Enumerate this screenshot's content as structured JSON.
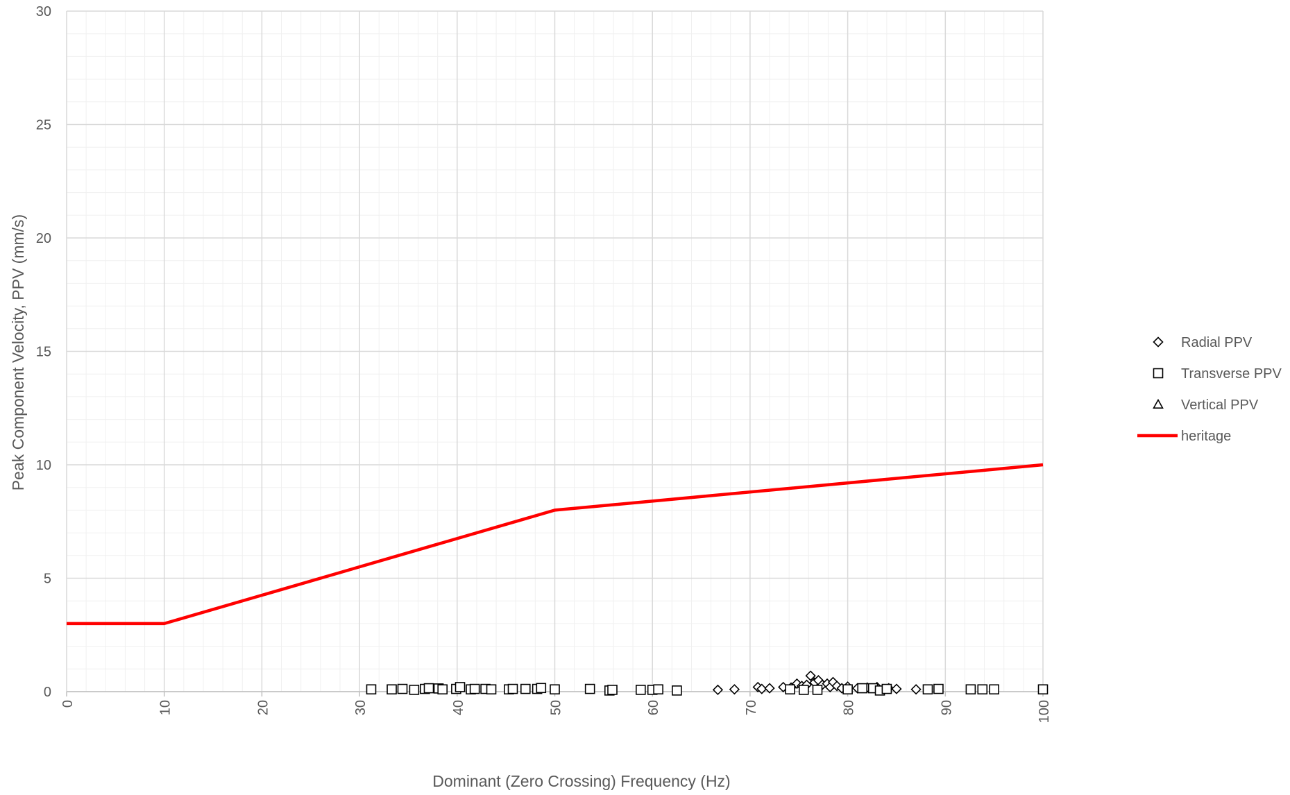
{
  "chart_data": {
    "type": "scatter",
    "title": "",
    "xlabel": "Dominant (Zero Crossing) Frequency (Hz)",
    "ylabel": "Peak Component Velocity, PPV (mm/s)",
    "xlim": [
      0,
      100
    ],
    "ylim": [
      0,
      30
    ],
    "x_ticks": [
      "0",
      "10",
      "20",
      "30",
      "40",
      "50",
      "60",
      "70",
      "80",
      "90",
      "100"
    ],
    "y_ticks": [
      "0",
      "5",
      "10",
      "15",
      "20",
      "25",
      "30"
    ],
    "grid": true,
    "minor_grid": true,
    "legend_position": "right",
    "colors": {
      "heritage": "#ff0000",
      "marker": "#000000",
      "major_grid": "#d9d9d9",
      "minor_grid": "#f0f0f0",
      "text": "#595959"
    },
    "series": [
      {
        "name": "Radial PPV",
        "marker": "diamond",
        "points": [
          [
            66.7,
            0.08
          ],
          [
            68.4,
            0.1
          ],
          [
            70.8,
            0.2
          ],
          [
            71.2,
            0.12
          ],
          [
            72.0,
            0.15
          ],
          [
            73.4,
            0.2
          ],
          [
            74.2,
            0.18
          ],
          [
            74.8,
            0.35
          ],
          [
            75.3,
            0.25
          ],
          [
            75.8,
            0.3
          ],
          [
            76.2,
            0.7
          ],
          [
            76.6,
            0.4
          ],
          [
            77.0,
            0.5
          ],
          [
            77.4,
            0.3
          ],
          [
            77.9,
            0.35
          ],
          [
            78.2,
            0.2
          ],
          [
            78.5,
            0.42
          ],
          [
            78.9,
            0.25
          ],
          [
            79.4,
            0.15
          ],
          [
            80.0,
            0.22
          ],
          [
            81.0,
            0.15
          ],
          [
            82.0,
            0.18
          ],
          [
            83.0,
            0.2
          ],
          [
            84.2,
            0.15
          ],
          [
            85.0,
            0.12
          ],
          [
            87.0,
            0.1
          ]
        ]
      },
      {
        "name": "Transverse PPV",
        "marker": "square",
        "points": [
          [
            31.2,
            0.1
          ],
          [
            33.3,
            0.1
          ],
          [
            34.4,
            0.12
          ],
          [
            35.6,
            0.08
          ],
          [
            36.7,
            0.12
          ],
          [
            37.1,
            0.15
          ],
          [
            38.1,
            0.14
          ],
          [
            38.5,
            0.1
          ],
          [
            39.9,
            0.12
          ],
          [
            40.3,
            0.2
          ],
          [
            41.4,
            0.1
          ],
          [
            41.8,
            0.12
          ],
          [
            42.9,
            0.12
          ],
          [
            43.5,
            0.1
          ],
          [
            45.3,
            0.1
          ],
          [
            45.7,
            0.12
          ],
          [
            47.0,
            0.12
          ],
          [
            48.2,
            0.12
          ],
          [
            48.6,
            0.16
          ],
          [
            50.0,
            0.1
          ],
          [
            53.6,
            0.12
          ],
          [
            55.6,
            0.05
          ],
          [
            55.9,
            0.08
          ],
          [
            58.8,
            0.08
          ],
          [
            60.0,
            0.08
          ],
          [
            60.6,
            0.1
          ],
          [
            62.5,
            0.05
          ],
          [
            74.1,
            0.1
          ],
          [
            75.5,
            0.08
          ],
          [
            76.9,
            0.08
          ],
          [
            80.0,
            0.1
          ],
          [
            81.5,
            0.15
          ],
          [
            82.6,
            0.15
          ],
          [
            83.3,
            0.05
          ],
          [
            84.0,
            0.12
          ],
          [
            88.2,
            0.1
          ],
          [
            89.3,
            0.12
          ],
          [
            92.6,
            0.1
          ],
          [
            93.8,
            0.1
          ],
          [
            95.0,
            0.1
          ],
          [
            100.0,
            0.1
          ]
        ]
      },
      {
        "name": "Vertical PPV",
        "marker": "triangle",
        "points": []
      },
      {
        "name": "heritage",
        "marker": "line",
        "points": [
          [
            0,
            3
          ],
          [
            10,
            3
          ],
          [
            50,
            8
          ],
          [
            100,
            10
          ]
        ]
      }
    ]
  }
}
